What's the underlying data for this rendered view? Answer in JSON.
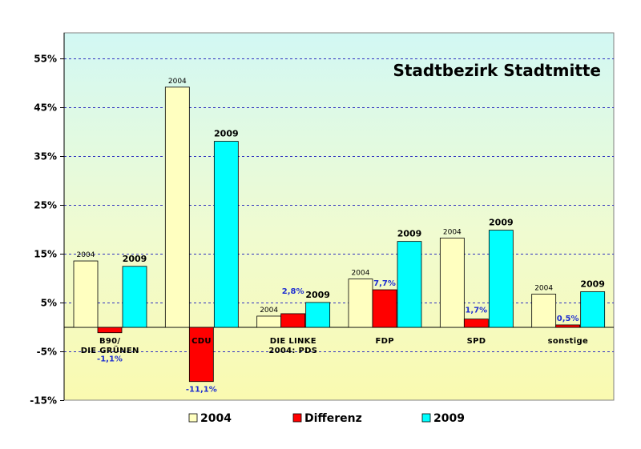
{
  "chart_data": {
    "type": "bar",
    "title": "Stadtbezirk Stadtmitte",
    "categories": [
      {
        "lines": [
          "B90/",
          "DIE GRÜNEN"
        ]
      },
      {
        "lines": [
          "CDU"
        ]
      },
      {
        "lines": [
          "DIE LINKE",
          "2004: PDS"
        ]
      },
      {
        "lines": [
          "FDP"
        ]
      },
      {
        "lines": [
          "SPD"
        ]
      },
      {
        "lines": [
          "sonstige"
        ]
      }
    ],
    "series": [
      {
        "name": "2004",
        "color": "#ffffc0",
        "values": [
          13.6,
          49.2,
          2.3,
          9.9,
          18.3,
          6.8
        ],
        "label": "2004"
      },
      {
        "name": "Differenz",
        "color": "#ff0000",
        "values": [
          -1.1,
          -11.1,
          2.8,
          7.7,
          1.7,
          0.5
        ],
        "labels": [
          "-1,1%",
          "-11,1%",
          "2,8%",
          "7,7%",
          "1,7%",
          "0,5%"
        ]
      },
      {
        "name": "2009",
        "color": "#00ffff",
        "values": [
          12.5,
          38.1,
          5.1,
          17.6,
          19.9,
          7.3
        ],
        "label": "2009"
      }
    ],
    "y_ticks": [
      {
        "value": 55,
        "label": "55%"
      },
      {
        "value": 45,
        "label": "45%"
      },
      {
        "value": 35,
        "label": "35%"
      },
      {
        "value": 25,
        "label": "25%"
      },
      {
        "value": 15,
        "label": "15%"
      },
      {
        "value": 5,
        "label": "5%"
      },
      {
        "value": -5,
        "label": "-5%"
      },
      {
        "value": -15,
        "label": "-15%"
      }
    ],
    "ylim": [
      -15,
      60
    ],
    "grid": true,
    "legend_position": "bottom"
  }
}
